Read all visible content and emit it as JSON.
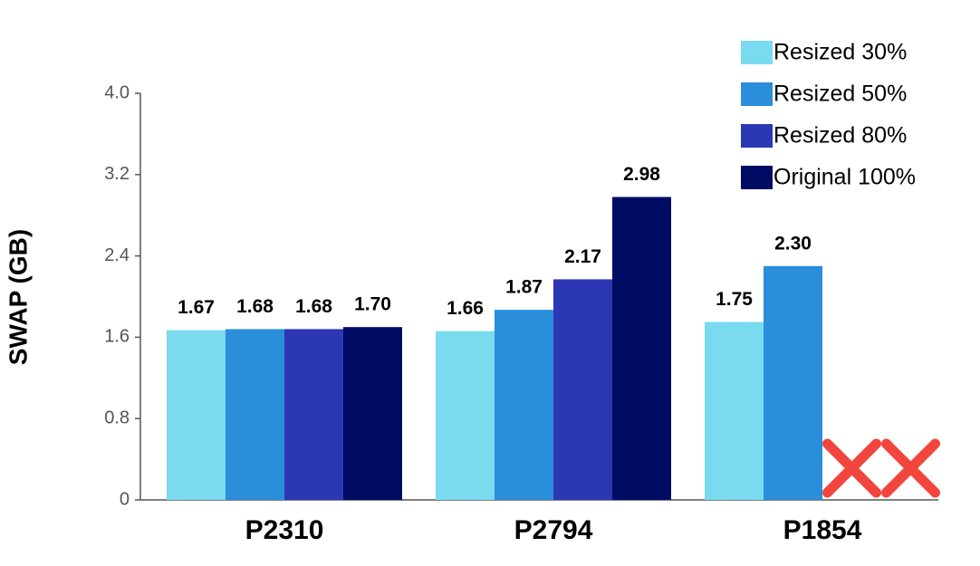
{
  "chart_data": {
    "type": "bar",
    "y_label": "SWAP (GB)",
    "categories": [
      "P2310",
      "P2794",
      "P1854"
    ],
    "series": [
      {
        "name": "Resized 30%",
        "color": "#7adaf0",
        "values": [
          1.67,
          1.66,
          1.75
        ],
        "value_labels": [
          "1.67",
          "1.66",
          "1.75"
        ]
      },
      {
        "name": "Resized 50%",
        "color": "#2a8edb",
        "values": [
          1.68,
          1.87,
          2.3
        ],
        "value_labels": [
          "1.68",
          "1.87",
          "2.30"
        ]
      },
      {
        "name": "Resized 80%",
        "color": "#2b37b3",
        "values": [
          1.68,
          2.17,
          null
        ],
        "value_labels": [
          "1.68",
          "2.17",
          null
        ]
      },
      {
        "name": "Original 100%",
        "color": "#000b64",
        "values": [
          1.7,
          2.98,
          null
        ],
        "value_labels": [
          "1.70",
          "2.98",
          null
        ]
      }
    ],
    "ylim": [
      0,
      4
    ],
    "yticks": [
      0,
      0.8,
      1.6,
      2.4,
      3.2,
      {
        "value": 4,
        "label": "4.0"
      }
    ],
    "grid": false,
    "legend": "top-right"
  }
}
